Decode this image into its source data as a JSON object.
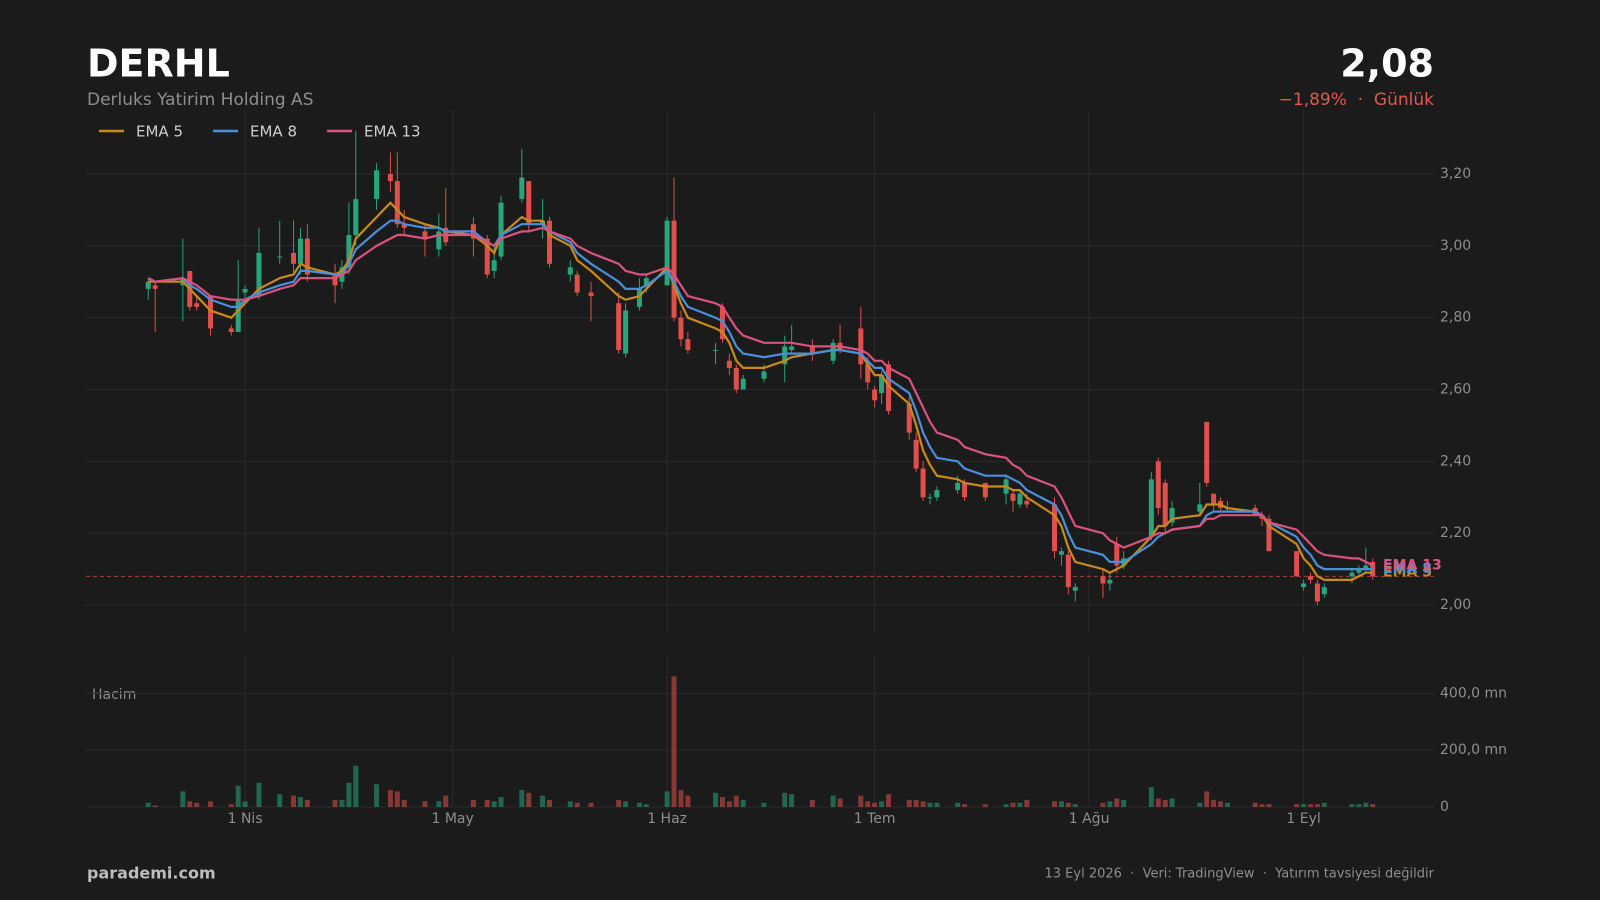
{
  "header": {
    "ticker": "DERHL",
    "name": "Derluks Yatirim Holding AS",
    "price": "2,08",
    "change": "−1,89%  ·  Günlük"
  },
  "chart_data": [
    {
      "type": "candlestick",
      "x": [
        "03-18",
        "03-19",
        "03-23",
        "03-24",
        "03-25",
        "03-27",
        "03-30",
        "03-31",
        "04-01",
        "04-03",
        "04-06",
        "04-08",
        "04-09",
        "04-10",
        "04-14",
        "04-15",
        "04-16",
        "04-17",
        "04-20",
        "04-22",
        "04-23",
        "04-24",
        "04-27",
        "04-29",
        "04-30",
        "05-04",
        "05-06",
        "05-07",
        "05-08",
        "05-11",
        "05-12",
        "05-14",
        "05-15",
        "05-18",
        "05-19",
        "05-21",
        "05-25",
        "05-26",
        "05-28",
        "05-29",
        "06-01",
        "06-02",
        "06-03",
        "06-04",
        "06-08",
        "06-09",
        "06-10",
        "06-11",
        "06-12",
        "06-15",
        "06-18",
        "06-19",
        "06-22",
        "06-25",
        "06-26",
        "06-29",
        "06-30",
        "07-01",
        "07-02",
        "07-03",
        "07-06",
        "07-07",
        "07-08",
        "07-09",
        "07-10",
        "07-13",
        "07-14",
        "07-17",
        "07-20",
        "07-21",
        "07-22",
        "07-23",
        "07-27",
        "07-28",
        "07-29",
        "07-30",
        "08-03",
        "08-04",
        "08-05",
        "08-06",
        "08-10",
        "08-11",
        "08-12",
        "08-13",
        "08-17",
        "08-18",
        "08-19",
        "08-20",
        "08-21",
        "08-25",
        "08-26",
        "08-27",
        "08-31",
        "09-01",
        "09-02",
        "09-03",
        "09-04",
        "09-08",
        "09-09",
        "09-10",
        "09-11"
      ],
      "open": [
        2.88,
        2.89,
        2.89,
        2.93,
        2.84,
        2.86,
        2.77,
        2.76,
        2.87,
        2.86,
        2.97,
        2.98,
        2.95,
        3.02,
        2.92,
        2.9,
        2.94,
        3.03,
        3.13,
        3.2,
        3.18,
        3.06,
        3.04,
        2.99,
        3.05,
        3.06,
        3.02,
        2.93,
        2.97,
        3.13,
        3.18,
        3.06,
        3.07,
        2.92,
        2.92,
        2.87,
        2.84,
        2.7,
        2.83,
        2.89,
        2.89,
        3.07,
        2.8,
        2.74,
        2.71,
        2.83,
        2.68,
        2.66,
        2.6,
        2.63,
        2.67,
        2.71,
        2.72,
        2.68,
        2.73,
        2.77,
        2.67,
        2.6,
        2.59,
        2.67,
        2.56,
        2.46,
        2.38,
        2.3,
        2.3,
        2.32,
        2.34,
        2.34,
        2.31,
        2.31,
        2.28,
        2.29,
        2.28,
        2.14,
        2.14,
        2.04,
        2.08,
        2.06,
        2.17,
        2.11,
        2.19,
        2.4,
        2.34,
        2.23,
        2.26,
        2.51,
        2.31,
        2.29,
        2.27,
        2.27,
        2.25,
        2.24,
        2.15,
        2.05,
        2.08,
        2.06,
        2.03,
        2.08,
        2.09,
        2.1,
        2.12
      ],
      "high": [
        2.91,
        2.9,
        3.02,
        2.93,
        2.86,
        2.86,
        2.78,
        2.96,
        2.89,
        3.05,
        3.07,
        3.07,
        3.05,
        3.06,
        2.95,
        2.96,
        3.12,
        3.32,
        3.23,
        3.26,
        3.26,
        3.1,
        3.06,
        3.09,
        3.16,
        3.08,
        3.03,
        3.0,
        3.14,
        3.27,
        3.18,
        3.13,
        3.08,
        2.96,
        2.93,
        2.9,
        2.87,
        2.84,
        2.91,
        2.92,
        3.08,
        3.19,
        2.82,
        2.76,
        2.73,
        2.84,
        2.7,
        2.67,
        2.64,
        2.67,
        2.75,
        2.78,
        2.74,
        2.74,
        2.78,
        2.83,
        2.69,
        2.61,
        2.65,
        2.68,
        2.58,
        2.48,
        2.4,
        2.31,
        2.33,
        2.36,
        2.35,
        2.34,
        2.36,
        2.32,
        2.32,
        2.31,
        2.3,
        2.16,
        2.15,
        2.06,
        2.1,
        2.09,
        2.19,
        2.15,
        2.37,
        2.41,
        2.35,
        2.29,
        2.34,
        2.51,
        2.31,
        2.3,
        2.29,
        2.28,
        2.26,
        2.25,
        2.15,
        2.07,
        2.09,
        2.07,
        2.06,
        2.1,
        2.11,
        2.16,
        2.13
      ],
      "low": [
        2.85,
        2.76,
        2.79,
        2.82,
        2.82,
        2.75,
        2.75,
        2.76,
        2.84,
        2.85,
        2.95,
        2.92,
        2.92,
        2.9,
        2.84,
        2.88,
        2.92,
        3.0,
        3.1,
        3.15,
        3.05,
        3.03,
        2.97,
        2.97,
        3.0,
        2.97,
        2.91,
        2.91,
        2.96,
        3.12,
        3.04,
        3.02,
        2.94,
        2.9,
        2.86,
        2.79,
        2.7,
        2.69,
        2.82,
        2.87,
        2.89,
        2.79,
        2.72,
        2.7,
        2.67,
        2.73,
        2.64,
        2.59,
        2.6,
        2.62,
        2.62,
        2.7,
        2.68,
        2.67,
        2.7,
        2.63,
        2.6,
        2.55,
        2.56,
        2.53,
        2.46,
        2.37,
        2.29,
        2.28,
        2.29,
        2.31,
        2.29,
        2.29,
        2.28,
        2.26,
        2.27,
        2.27,
        2.13,
        2.11,
        2.03,
        2.01,
        2.02,
        2.04,
        2.09,
        2.1,
        2.18,
        2.25,
        2.2,
        2.22,
        2.25,
        2.33,
        2.26,
        2.26,
        2.26,
        2.25,
        2.22,
        2.15,
        2.08,
        2.04,
        2.06,
        2.0,
        2.02,
        2.06,
        2.08,
        2.09,
        2.07
      ],
      "close": [
        2.9,
        2.88,
        2.91,
        2.83,
        2.83,
        2.77,
        2.76,
        2.85,
        2.88,
        2.98,
        2.97,
        2.95,
        3.02,
        2.92,
        2.89,
        2.94,
        3.03,
        3.13,
        3.21,
        3.18,
        3.06,
        3.05,
        3.02,
        3.04,
        3.01,
        3.02,
        2.92,
        2.96,
        3.12,
        3.19,
        3.06,
        3.07,
        2.95,
        2.94,
        2.87,
        2.86,
        2.71,
        2.82,
        2.88,
        2.91,
        3.07,
        2.8,
        2.74,
        2.71,
        2.71,
        2.74,
        2.66,
        2.6,
        2.63,
        2.65,
        2.72,
        2.72,
        2.7,
        2.73,
        2.71,
        2.67,
        2.62,
        2.57,
        2.64,
        2.54,
        2.48,
        2.38,
        2.3,
        2.3,
        2.32,
        2.34,
        2.3,
        2.3,
        2.35,
        2.29,
        2.31,
        2.28,
        2.15,
        2.15,
        2.05,
        2.05,
        2.06,
        2.07,
        2.11,
        2.13,
        2.35,
        2.27,
        2.22,
        2.27,
        2.28,
        2.34,
        2.28,
        2.27,
        2.27,
        2.25,
        2.24,
        2.15,
        2.08,
        2.06,
        2.07,
        2.01,
        2.05,
        2.09,
        2.1,
        2.11,
        2.08
      ],
      "series": [
        {
          "name": "EMA 5",
          "color": "#c98a1a",
          "values": [
            2.9,
            2.9,
            2.9,
            2.88,
            2.86,
            2.82,
            2.8,
            2.82,
            2.84,
            2.88,
            2.91,
            2.92,
            2.95,
            2.94,
            2.92,
            2.93,
            2.96,
            3.02,
            3.08,
            3.12,
            3.1,
            3.08,
            3.06,
            3.05,
            3.04,
            3.03,
            3.0,
            2.98,
            3.03,
            3.08,
            3.07,
            3.07,
            3.03,
            3.0,
            2.96,
            2.93,
            2.86,
            2.85,
            2.86,
            2.88,
            2.94,
            2.89,
            2.84,
            2.8,
            2.77,
            2.76,
            2.73,
            2.68,
            2.66,
            2.66,
            2.68,
            2.69,
            2.7,
            2.71,
            2.71,
            2.7,
            2.67,
            2.64,
            2.64,
            2.61,
            2.56,
            2.5,
            2.43,
            2.39,
            2.36,
            2.35,
            2.34,
            2.33,
            2.33,
            2.32,
            2.32,
            2.3,
            2.25,
            2.22,
            2.16,
            2.12,
            2.1,
            2.09,
            2.1,
            2.11,
            2.19,
            2.22,
            2.22,
            2.24,
            2.25,
            2.28,
            2.28,
            2.28,
            2.27,
            2.26,
            2.25,
            2.22,
            2.17,
            2.13,
            2.11,
            2.08,
            2.07,
            2.07,
            2.08,
            2.09,
            2.09
          ]
        },
        {
          "name": "EMA 8",
          "color": "#4a8fdc",
          "values": [
            2.91,
            2.9,
            2.91,
            2.89,
            2.88,
            2.85,
            2.83,
            2.83,
            2.85,
            2.87,
            2.89,
            2.9,
            2.93,
            2.93,
            2.92,
            2.92,
            2.95,
            2.99,
            3.04,
            3.07,
            3.07,
            3.06,
            3.05,
            3.05,
            3.04,
            3.04,
            3.01,
            3.0,
            3.03,
            3.06,
            3.06,
            3.06,
            3.04,
            3.01,
            2.98,
            2.95,
            2.9,
            2.88,
            2.88,
            2.89,
            2.93,
            2.9,
            2.86,
            2.83,
            2.8,
            2.79,
            2.76,
            2.72,
            2.7,
            2.69,
            2.7,
            2.7,
            2.7,
            2.71,
            2.71,
            2.7,
            2.68,
            2.66,
            2.66,
            2.63,
            2.59,
            2.54,
            2.48,
            2.44,
            2.41,
            2.4,
            2.38,
            2.36,
            2.36,
            2.35,
            2.34,
            2.32,
            2.28,
            2.25,
            2.2,
            2.16,
            2.14,
            2.12,
            2.12,
            2.12,
            2.17,
            2.19,
            2.2,
            2.21,
            2.22,
            2.25,
            2.26,
            2.26,
            2.26,
            2.26,
            2.25,
            2.23,
            2.19,
            2.16,
            2.14,
            2.11,
            2.1,
            2.1,
            2.1,
            2.1,
            2.1
          ]
        },
        {
          "name": "EMA 13",
          "color": "#d9537e",
          "values": [
            2.91,
            2.9,
            2.91,
            2.9,
            2.89,
            2.86,
            2.85,
            2.85,
            2.85,
            2.86,
            2.88,
            2.89,
            2.91,
            2.91,
            2.91,
            2.92,
            2.93,
            2.96,
            3.0,
            3.02,
            3.03,
            3.03,
            3.02,
            3.03,
            3.03,
            3.03,
            3.01,
            3.0,
            3.02,
            3.04,
            3.04,
            3.05,
            3.04,
            3.02,
            3.0,
            2.98,
            2.95,
            2.93,
            2.92,
            2.92,
            2.94,
            2.92,
            2.89,
            2.86,
            2.84,
            2.83,
            2.8,
            2.77,
            2.75,
            2.73,
            2.73,
            2.73,
            2.72,
            2.72,
            2.72,
            2.71,
            2.7,
            2.68,
            2.68,
            2.66,
            2.63,
            2.59,
            2.55,
            2.51,
            2.48,
            2.46,
            2.44,
            2.42,
            2.41,
            2.39,
            2.38,
            2.36,
            2.33,
            2.3,
            2.26,
            2.22,
            2.2,
            2.18,
            2.17,
            2.16,
            2.19,
            2.2,
            2.2,
            2.21,
            2.22,
            2.24,
            2.24,
            2.25,
            2.25,
            2.25,
            2.25,
            2.23,
            2.21,
            2.19,
            2.17,
            2.15,
            2.14,
            2.13,
            2.13,
            2.12,
            2.11
          ]
        }
      ],
      "xlim": [
        "03-09",
        "09-20"
      ],
      "xticks": [
        {
          "value": "04-01",
          "label": "1 Nis"
        },
        {
          "value": "05-01",
          "label": "1 May"
        },
        {
          "value": "06-01",
          "label": "1 Haz"
        },
        {
          "value": "07-01",
          "label": "1 Tem"
        },
        {
          "value": "08-01",
          "label": "1 Ağu"
        },
        {
          "value": "09-01",
          "label": "1 Eyl"
        }
      ],
      "ylim": [
        1.925,
        3.378
      ],
      "yticks": [
        {
          "value": 2.0,
          "label": "2,00"
        },
        {
          "value": 2.2,
          "label": "2,20"
        },
        {
          "value": 2.4,
          "label": "2,40"
        },
        {
          "value": 2.6,
          "label": "2,60"
        },
        {
          "value": 2.8,
          "label": "2,80"
        },
        {
          "value": 3.0,
          "label": "3,00"
        },
        {
          "value": 3.2,
          "label": "3,20"
        }
      ],
      "last_price": 2.08,
      "up_color": "#26a67a",
      "down_color": "#e0504a",
      "grid": true,
      "legend": "upper left"
    },
    {
      "type": "bar",
      "title": "Hacim",
      "values": [
        15,
        5,
        55,
        20,
        15,
        20,
        10,
        75,
        20,
        85,
        45,
        40,
        35,
        25,
        25,
        25,
        85,
        145,
        80,
        60,
        55,
        25,
        20,
        20,
        40,
        25,
        25,
        20,
        35,
        60,
        50,
        40,
        25,
        20,
        15,
        15,
        25,
        20,
        15,
        10,
        55,
        460,
        60,
        40,
        50,
        35,
        20,
        40,
        25,
        15,
        50,
        45,
        25,
        40,
        30,
        40,
        20,
        15,
        20,
        45,
        25,
        25,
        20,
        15,
        15,
        15,
        10,
        10,
        10,
        15,
        15,
        25,
        20,
        20,
        15,
        10,
        15,
        20,
        30,
        25,
        70,
        30,
        25,
        30,
        15,
        55,
        25,
        20,
        15,
        15,
        10,
        10,
        10,
        10,
        10,
        10,
        15,
        10,
        10,
        15,
        10
      ],
      "ylim": [
        0,
        535
      ],
      "yticks": [
        0,
        {
          "value": 200,
          "label": "200,0 mn"
        },
        {
          "value": 400,
          "label": "400,0 mn"
        }
      ]
    }
  ],
  "footer": {
    "site": "parademi.com",
    "note": "13 Eyl 2026  ·  Veri: TradingView  ·  Yatırım tavsiyesi değildir"
  }
}
